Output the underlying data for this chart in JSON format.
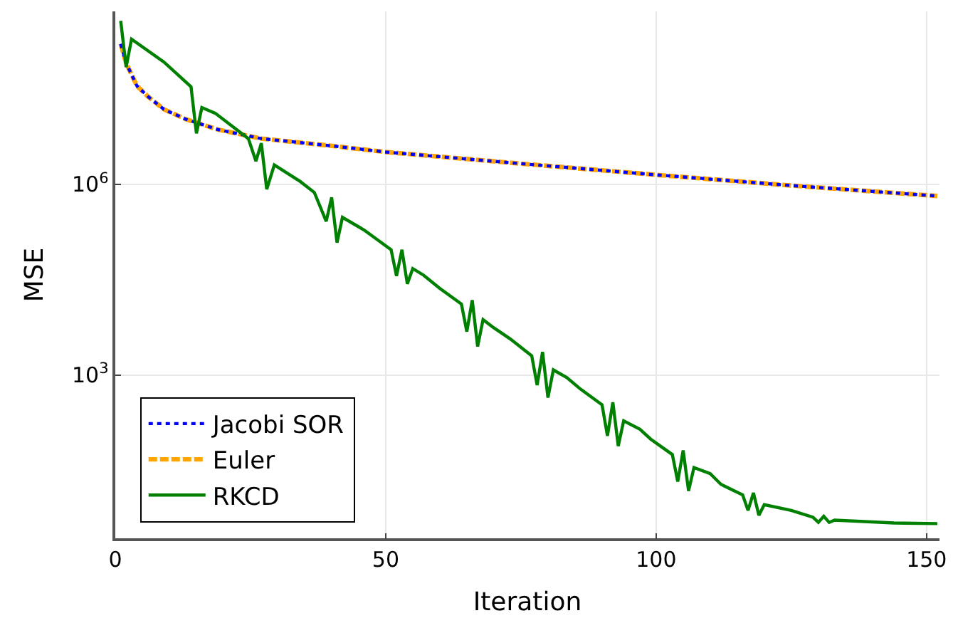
{
  "chart_data": {
    "type": "line",
    "xlabel": "Iteration",
    "ylabel": "MSE",
    "log": "y",
    "grid": true,
    "legend": "bottom left",
    "xlim": [
      0,
      152.4
    ],
    "xticks": [
      0,
      50,
      100,
      150
    ],
    "ylim": [
      2.7,
      520000000
    ],
    "yticks": [
      {
        "value": 1000,
        "label": "10$^{3}$"
      },
      {
        "value": 1000000,
        "label": "10$^{6}$"
      }
    ],
    "series": [
      {
        "name": "Jacobi SOR",
        "color": "#0000ff",
        "line_style": "dotted",
        "x": [
          1,
          2,
          4,
          6,
          9,
          13,
          19,
          27,
          40,
          50,
          60,
          75,
          100,
          125,
          152
        ],
        "values": [
          160000000,
          80000000,
          35000000,
          24000000,
          15000000,
          10500000,
          7200000,
          5200000,
          4000000,
          3200000,
          2700000,
          2100000,
          1400000,
          950000,
          650000
        ]
      },
      {
        "name": "Euler",
        "color": "#ffa500",
        "line_style": "dashed",
        "x": [
          1,
          2,
          4,
          6,
          9,
          13,
          19,
          27,
          40,
          50,
          60,
          75,
          100,
          125,
          152
        ],
        "values": [
          160000000,
          80000000,
          35000000,
          24000000,
          15000000,
          10500000,
          7200000,
          5200000,
          4000000,
          3200000,
          2700000,
          2100000,
          1400000,
          950000,
          650000
        ]
      },
      {
        "name": "RKCD",
        "color": "#008000",
        "line_style": "solid",
        "x": [
          1,
          2,
          3,
          9,
          14,
          15,
          16,
          18.5,
          24.6,
          26,
          27,
          28,
          29.4,
          34.2,
          36.8,
          39,
          40,
          41,
          42,
          46,
          51,
          52,
          53,
          54,
          55,
          57,
          60,
          64,
          65,
          66,
          67,
          68,
          70,
          73,
          77,
          78,
          79,
          80,
          81,
          83.5,
          86,
          90,
          91,
          92,
          93,
          94,
          97,
          99,
          103,
          104,
          105,
          106,
          107,
          110,
          112,
          116,
          117,
          118,
          119,
          120,
          125,
          129,
          130,
          131,
          132,
          133,
          144,
          152
        ],
        "values": [
          370000000,
          69000000,
          190000000,
          83000000,
          34000000,
          6300000,
          16000000,
          13000000,
          5200000,
          2300000,
          4400000,
          830000,
          2000000,
          1100000,
          740000,
          260000,
          620000,
          120000,
          300000,
          190000,
          93000,
          36000,
          93000,
          27000,
          47000,
          37000,
          23000,
          13000,
          4800,
          15000,
          2800,
          7400,
          5500,
          3700,
          2000,
          690,
          2300,
          440,
          1200,
          910,
          600,
          340,
          110,
          370,
          76,
          190,
          140,
          98,
          56,
          21,
          65,
          15,
          35,
          28,
          19,
          13,
          7.4,
          14,
          6.2,
          9.1,
          7.4,
          5.8,
          4.8,
          6.0,
          4.8,
          5.2,
          4.7,
          4.6
        ]
      }
    ]
  }
}
